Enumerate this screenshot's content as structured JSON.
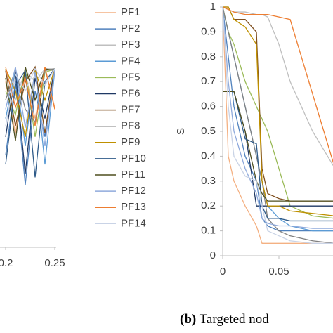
{
  "chart_data": [
    {
      "type": "line",
      "x": [
        0.2,
        0.21,
        0.22,
        0.23,
        0.24,
        0.25
      ],
      "xlim": [
        0.2,
        0.25
      ],
      "xticks": [
        0.2,
        0.25
      ],
      "ylim": [
        0,
        1
      ],
      "series": [
        {
          "color": "#f4b183",
          "values": [
            0.9,
            0.62,
            0.95,
            0.7,
            0.97,
            0.76
          ]
        },
        {
          "color": "#4f81bd",
          "values": [
            0.5,
            0.9,
            0.34,
            0.85,
            0.6,
            0.97
          ]
        },
        {
          "color": "#bfbfbf",
          "values": [
            0.95,
            0.8,
            0.96,
            0.9,
            0.97,
            0.97
          ]
        },
        {
          "color": "#5b9bd5",
          "values": [
            0.7,
            0.96,
            0.55,
            0.97,
            0.45,
            0.96
          ]
        },
        {
          "color": "#9bbb59",
          "values": [
            0.85,
            0.72,
            0.97,
            0.6,
            0.95,
            0.97
          ]
        },
        {
          "color": "#1f3864",
          "values": [
            0.6,
            0.95,
            0.4,
            0.92,
            0.7,
            0.97
          ]
        },
        {
          "color": "#7f4f1f",
          "values": [
            0.96,
            0.66,
            0.9,
            0.98,
            0.62,
            0.97
          ]
        },
        {
          "color": "#808080",
          "values": [
            0.8,
            0.97,
            0.75,
            0.68,
            0.96,
            0.97
          ]
        },
        {
          "color": "#bf9000",
          "values": [
            0.97,
            0.85,
            0.6,
            0.96,
            0.8,
            0.97
          ]
        },
        {
          "color": "#2e5a88",
          "values": [
            0.45,
            0.88,
            0.96,
            0.38,
            0.9,
            0.97
          ]
        },
        {
          "color": "#4f4f1f",
          "values": [
            0.92,
            0.58,
            0.98,
            0.8,
            0.97,
            0.96
          ]
        },
        {
          "color": "#8faadc",
          "values": [
            0.75,
            0.98,
            0.65,
            0.95,
            0.55,
            0.97
          ]
        },
        {
          "color": "#ed7d31",
          "values": [
            0.98,
            0.76,
            0.92,
            0.66,
            0.98,
            0.75
          ]
        },
        {
          "color": "#c9d3e6",
          "values": [
            0.66,
            0.94,
            0.85,
            0.97,
            0.88,
            0.97
          ]
        }
      ]
    },
    {
      "type": "line",
      "x": [
        0,
        0.005,
        0.01,
        0.02,
        0.03,
        0.035,
        0.04,
        0.05,
        0.06,
        0.08,
        0.1
      ],
      "xlim": [
        0,
        0.1
      ],
      "xticks": [
        0,
        0.05
      ],
      "ylim": [
        0,
        1
      ],
      "yticks": [
        0,
        0.1,
        0.2,
        0.3,
        0.4,
        0.5,
        0.6,
        0.7,
        0.8,
        0.9,
        1
      ],
      "y_label": "S",
      "series": [
        {
          "name": "PF1",
          "color": "#f4b183",
          "values": [
            1,
            0.4,
            0.3,
            0.2,
            0.12,
            0.05,
            0.05,
            0.05,
            0.05,
            0.05,
            0.05
          ]
        },
        {
          "name": "PF2",
          "color": "#4f81bd",
          "values": [
            1,
            0.8,
            0.6,
            0.4,
            0.3,
            0.15,
            0.12,
            0.1,
            0.1,
            0.1,
            0.1
          ]
        },
        {
          "name": "PF3",
          "color": "#bfbfbf",
          "values": [
            1,
            0.99,
            0.98,
            0.98,
            0.97,
            0.97,
            0.96,
            0.85,
            0.7,
            0.5,
            0.35
          ]
        },
        {
          "name": "PF4",
          "color": "#5b9bd5",
          "values": [
            1,
            0.9,
            0.8,
            0.6,
            0.4,
            0.3,
            0.2,
            0.15,
            0.12,
            0.1,
            0.1
          ]
        },
        {
          "name": "PF5",
          "color": "#9bbb59",
          "values": [
            1,
            0.9,
            0.85,
            0.7,
            0.6,
            0.55,
            0.5,
            0.35,
            0.2,
            0.16,
            0.15
          ]
        },
        {
          "name": "PF6",
          "color": "#1f3864",
          "values": [
            0.66,
            0.66,
            0.66,
            0.5,
            0.2,
            0.2,
            0.2,
            0.2,
            0.2,
            0.2,
            0.2
          ]
        },
        {
          "name": "PF7",
          "color": "#7f4f1f",
          "values": [
            1,
            1,
            0.95,
            0.95,
            0.9,
            0.35,
            0.25,
            0.23,
            0.22,
            0.22,
            0.22
          ]
        },
        {
          "name": "PF8",
          "color": "#808080",
          "values": [
            1,
            0.9,
            0.8,
            0.6,
            0.4,
            0.3,
            0.15,
            0.1,
            0.08,
            0.06,
            0.05
          ]
        },
        {
          "name": "PF9",
          "color": "#bf9000",
          "values": [
            1,
            1,
            0.95,
            0.92,
            0.85,
            0.3,
            0.2,
            0.2,
            0.18,
            0.17,
            0.16
          ]
        },
        {
          "name": "PF10",
          "color": "#2e5a88",
          "values": [
            0.66,
            0.66,
            0.66,
            0.47,
            0.45,
            0.2,
            0.15,
            0.15,
            0.14,
            0.14,
            0.14
          ]
        },
        {
          "name": "PF11",
          "color": "#4f4f1f",
          "values": [
            0.66,
            0.66,
            0.66,
            0.5,
            0.3,
            0.25,
            0.22,
            0.22,
            0.22,
            0.22,
            0.22
          ]
        },
        {
          "name": "PF12",
          "color": "#8faadc",
          "values": [
            1,
            0.7,
            0.5,
            0.35,
            0.25,
            0.15,
            0.13,
            0.12,
            0.12,
            0.11,
            0.11
          ]
        },
        {
          "name": "PF13",
          "color": "#ed7d31",
          "values": [
            1,
            0.99,
            0.98,
            0.97,
            0.97,
            0.97,
            0.97,
            0.96,
            0.95,
            0.65,
            0.35
          ]
        },
        {
          "name": "PF14",
          "color": "#c9d3e6",
          "values": [
            1,
            0.6,
            0.4,
            0.32,
            0.3,
            0.2,
            0.1,
            0.08,
            0.06,
            0.05,
            0.05
          ]
        }
      ]
    }
  ],
  "caption": {
    "label": "(b)",
    "text": "Targeted nod"
  }
}
